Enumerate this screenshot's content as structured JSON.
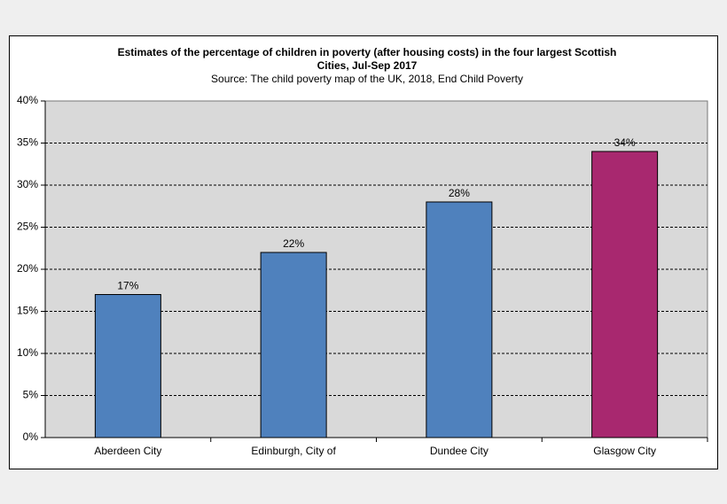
{
  "chart_data": {
    "type": "bar",
    "title": [
      "Estimates of the percentage of children in poverty (after housing costs) in the four largest Scottish",
      "Cities, Jul-Sep 2017"
    ],
    "subtitle": "Source: The child poverty map of the UK, 2018, End Child Poverty",
    "categories": [
      "Aberdeen City",
      "Edinburgh, City of",
      "Dundee City",
      "Glasgow City"
    ],
    "values": [
      17,
      22,
      28,
      34
    ],
    "value_labels": [
      "17%",
      "22%",
      "28%",
      "34%"
    ],
    "colors": [
      "#4f81bd",
      "#4f81bd",
      "#4f81bd",
      "#a8286f"
    ],
    "ylim": [
      0,
      40
    ],
    "yticks": [
      {
        "value": 0,
        "label": "0%"
      },
      {
        "value": 5,
        "label": "5%"
      },
      {
        "value": 10,
        "label": "10%"
      },
      {
        "value": 15,
        "label": "15%"
      },
      {
        "value": 20,
        "label": "20%"
      },
      {
        "value": 25,
        "label": "25%"
      },
      {
        "value": 30,
        "label": "30%"
      },
      {
        "value": 35,
        "label": "35%"
      },
      {
        "value": 40,
        "label": "40%"
      }
    ],
    "grid": true
  }
}
